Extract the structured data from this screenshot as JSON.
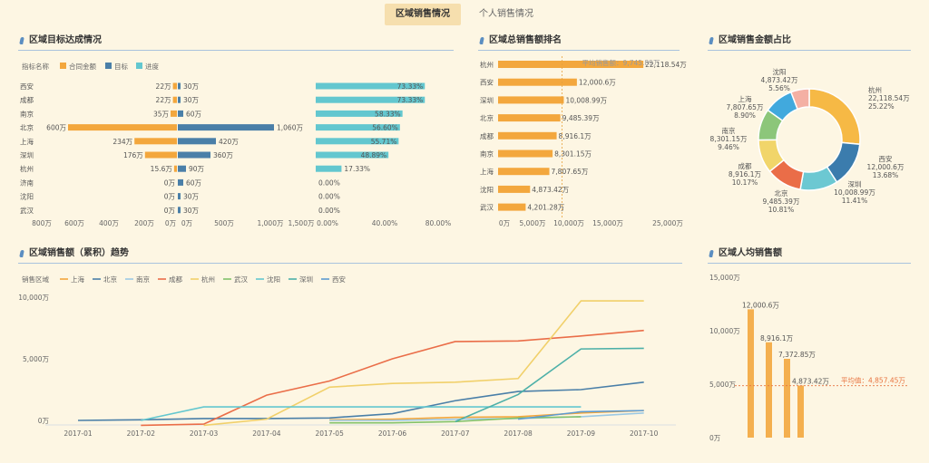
{
  "tabs": [
    "区域销售情况",
    "个人销售情况"
  ],
  "titles": {
    "target": "区域目标达成情况",
    "ranking": "区域总销售额排名",
    "share": "区域销售金额占比",
    "trend": "区域销售额（累积）趋势",
    "percapita": "区域人均销售额"
  },
  "colors": {
    "contract": "#f3a73d",
    "target": "#4a7fa8",
    "progress": "#63c7cf",
    "accent": "#e8733f"
  },
  "chart_data": [
    {
      "type": "bar",
      "title": "区域目标达成情况",
      "legend_prefix": "指标名称",
      "legend": [
        "合同金额",
        "目标",
        "进度"
      ],
      "categories": [
        "西安",
        "成都",
        "南京",
        "北京",
        "上海",
        "深圳",
        "杭州",
        "济南",
        "沈阳",
        "武汉"
      ],
      "series": [
        {
          "name": "合同金额",
          "values": [
            22,
            22,
            35,
            600,
            234,
            176,
            15.6,
            0,
            0,
            0
          ],
          "labels": [
            "22万",
            "22万",
            "35万",
            "600万",
            "234万",
            "176万",
            "15.6万",
            "0万",
            "0万",
            "0万"
          ]
        },
        {
          "name": "目标",
          "values": [
            30,
            30,
            60,
            1060,
            420,
            360,
            90,
            60,
            30,
            30
          ],
          "labels": [
            "30万",
            "30万",
            "60万",
            "1,060万",
            "420万",
            "360万",
            "90万",
            "60万",
            "30万",
            "30万"
          ]
        },
        {
          "name": "进度",
          "values": [
            73.33,
            73.33,
            58.33,
            56.6,
            55.71,
            48.89,
            17.33,
            0,
            0,
            0
          ],
          "labels": [
            "73.33%",
            "73.33%",
            "58.33%",
            "56.60%",
            "55.71%",
            "48.89%",
            "17.33%",
            "0.00%",
            "0.00%",
            "0.00%"
          ]
        }
      ],
      "xticks_contract": [
        "800万",
        "600万",
        "400万",
        "200万",
        "0万"
      ],
      "xticks_target": [
        "0万",
        "500万",
        "1,000万",
        "1,500万"
      ],
      "xticks_progress": [
        "0.00%",
        "40.00%",
        "80.00%"
      ]
    },
    {
      "type": "bar",
      "title": "区域总销售额排名",
      "categories": [
        "杭州",
        "西安",
        "深圳",
        "北京",
        "成都",
        "南京",
        "上海",
        "沈阳",
        "武汉"
      ],
      "values": [
        22118.54,
        12000.6,
        10008.99,
        9485.39,
        8916.1,
        8301.15,
        7807.65,
        4873.42,
        4201.28
      ],
      "labels": [
        "22,118.54万",
        "12,000.6万",
        "10,008.99万",
        "9,485.39万",
        "8,916.1万",
        "8,301.15万",
        "7,807.65万",
        "4,873.42万",
        "4,201.28万"
      ],
      "xlim": [
        0,
        25000
      ],
      "xticks": [
        "0万",
        "5,000万",
        "10,000万",
        "15,000万",
        "25,000万"
      ],
      "average": 9745.89,
      "average_label": "平均销售额：9,745.89万"
    },
    {
      "type": "pie",
      "title": "区域销售金额占比",
      "slices": [
        {
          "name": "杭州",
          "value": 22118.54,
          "label": "22,118.54万",
          "pct": "25.22%",
          "color": "#f6b945"
        },
        {
          "name": "西安",
          "value": 12000.6,
          "label": "12,000.6万",
          "pct": "13.68%",
          "color": "#3b7cad"
        },
        {
          "name": "深圳",
          "value": 10008.99,
          "label": "10,008.99万",
          "pct": "11.41%",
          "color": "#6cc8d2"
        },
        {
          "name": "北京",
          "value": 9485.39,
          "label": "9,485.39万",
          "pct": "10.81%",
          "color": "#ea6d48"
        },
        {
          "name": "成都",
          "value": 8916.1,
          "label": "8,916.1万",
          "pct": "10.17%",
          "color": "#f1d56a"
        },
        {
          "name": "南京",
          "value": 8301.15,
          "label": "8,301.15万",
          "pct": "9.46%",
          "color": "#8cc67a"
        },
        {
          "name": "上海",
          "value": 7807.65,
          "label": "7,807.65万",
          "pct": "8.90%",
          "color": "#41a9dd"
        },
        {
          "name": "沈阳",
          "value": 4873.42,
          "label": "4,873.42万",
          "pct": "5.56%",
          "color": "#f4b0a4"
        }
      ]
    },
    {
      "type": "line",
      "title": "区域销售额（累积）趋势",
      "legend_prefix": "销售区域",
      "x": [
        "2017-01",
        "2017-02",
        "2017-03",
        "2017-04",
        "2017-05",
        "2017-06",
        "2017-07",
        "2017-08",
        "2017-09",
        "2017-10"
      ],
      "yticks": [
        "0万",
        "5,000万",
        "10,000万"
      ],
      "ylim": [
        0,
        10000
      ],
      "series": [
        {
          "name": "上海",
          "color": "#f3a73d",
          "values": [
            null,
            null,
            null,
            null,
            50,
            100,
            250,
            300,
            600,
            800
          ]
        },
        {
          "name": "北京",
          "color": "#4a7fa8",
          "values": [
            0,
            50,
            150,
            150,
            200,
            550,
            1600,
            2350,
            2500,
            3100
          ]
        },
        {
          "name": "南京",
          "color": "#9cc9e4",
          "values": [
            null,
            null,
            null,
            null,
            0,
            0,
            100,
            150,
            300,
            600
          ]
        },
        {
          "name": "成都",
          "color": "#ea6d48",
          "values": [
            null,
            -400,
            -300,
            2050,
            3200,
            5000,
            6400,
            6450,
            6850,
            7300
          ]
        },
        {
          "name": "杭州",
          "color": "#f1d06a",
          "values": [
            null,
            null,
            -400,
            100,
            2700,
            3000,
            3100,
            3400,
            9700,
            9700
          ]
        },
        {
          "name": "武汉",
          "color": "#82c26a",
          "values": [
            null,
            null,
            null,
            null,
            -200,
            -200,
            -100,
            200,
            300,
            null
          ]
        },
        {
          "name": "沈阳",
          "color": "#63c7cf",
          "values": [
            null,
            0,
            1100,
            1100,
            1100,
            1100,
            1100,
            1100,
            1100,
            null
          ]
        },
        {
          "name": "深圳",
          "color": "#4db0a8",
          "values": [
            null,
            null,
            null,
            null,
            null,
            null,
            -100,
            2100,
            5800,
            5850
          ]
        },
        {
          "name": "西安",
          "color": "#5d9bd1",
          "values": [
            null,
            null,
            null,
            null,
            null,
            null,
            null,
            100,
            700,
            800
          ]
        }
      ]
    },
    {
      "type": "bar",
      "title": "区域人均销售额",
      "yticks": [
        "0万",
        "5,000万",
        "10,000万",
        "15,000万"
      ],
      "ylim": [
        0,
        15000
      ],
      "values": [
        12000.6,
        8916.1,
        7372.85,
        4873.42
      ],
      "labels": [
        "12,000.6万",
        "8,916.1万",
        "7,372.85万",
        "4,873.42万"
      ],
      "average_label": "平均值：4,857.45万"
    }
  ]
}
